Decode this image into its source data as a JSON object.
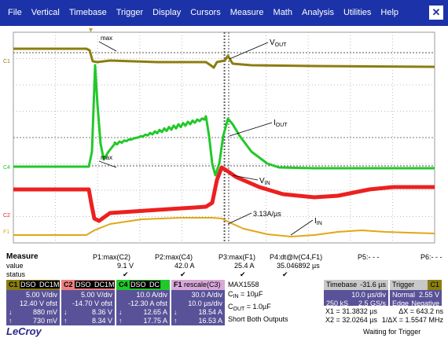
{
  "menu": [
    "File",
    "Vertical",
    "Timebase",
    "Trigger",
    "Display",
    "Cursors",
    "Measure",
    "Math",
    "Analysis",
    "Utilities",
    "Help"
  ],
  "close_glyph": "✕",
  "colors": {
    "c1": "#8b7d10",
    "c2": "#ec2020",
    "c4": "#22c82a",
    "f1": "#e0a818",
    "panel_bg": "#5a5298",
    "menu_bg": "#1c32a8"
  },
  "annotations": {
    "vout": {
      "main": "V",
      "sub": "OUT"
    },
    "iout": {
      "main": "I",
      "sub": "OUT"
    },
    "vin": {
      "main": "V",
      "sub": "IN"
    },
    "iin": {
      "main": "I",
      "sub": "IN"
    },
    "max1": "max",
    "max2": "max",
    "slope": "3.13A/µs"
  },
  "markers": {
    "c1": "C1",
    "c4": "C4",
    "c2": "C2",
    "f1": "F1"
  },
  "measure": {
    "title": "Measure",
    "row_value": "value",
    "row_status": "status",
    "params": [
      {
        "name": "P1:max(C2)",
        "value": "9.1 V",
        "status": "✔"
      },
      {
        "name": "P2:max(C4)",
        "value": "42.0 A",
        "status": "✔"
      },
      {
        "name": "P3:max(F1)",
        "value": "25.4 A",
        "status": "✔"
      },
      {
        "name": "P4:dt@lv(C4,F1)",
        "value": "35.046892 µs",
        "status": "✔"
      },
      {
        "name": "P5:- - -",
        "value": "",
        "status": ""
      },
      {
        "name": "P6:- - -",
        "value": "",
        "status": ""
      }
    ]
  },
  "channels": [
    {
      "tag": "C1",
      "dso": "DSO",
      "dc": "DC1M",
      "vdiv": "5.00 V/div",
      "ofst": "12.40 V ofst",
      "r1l": "↓",
      "r1": "880 mV",
      "r2l": "↑",
      "r2": "730 mV"
    },
    {
      "tag": "C2",
      "dso": "DSO",
      "dc": "DC1M",
      "vdiv": "5.00 V/div",
      "ofst": "-14.70 V ofst",
      "r1l": "↓",
      "r1": "8.36 V",
      "r2l": "↑",
      "r2": "8.34 V"
    },
    {
      "tag": "C4",
      "dso": "DSO",
      "dc": "DC",
      "vdiv": "10.0 A/div",
      "ofst": "-12.30 A ofst",
      "r1l": "↓",
      "r1": "12.65 A",
      "r2l": "↑",
      "r2": "17.75 A"
    },
    {
      "tag": "F1",
      "dso": "",
      "dc": "rescale(C3)",
      "vdiv": "30.0 A/div",
      "ofst": "10.0 µs/div",
      "r1l": "↓",
      "r1": "18.54 A",
      "r2l": "↑",
      "r2": "16.53 A"
    }
  ],
  "notes": {
    "part": "MAX1558",
    "cin": {
      "main": "C",
      "sub": "IN",
      "rest": " = 10µF"
    },
    "cout": {
      "main": "C",
      "sub": "OUT",
      "rest": " = 1.0µF"
    },
    "short": "Short Both Outputs"
  },
  "timebase": {
    "label": "Timebase",
    "offset": "-31.6 µs",
    "div": "10.0 µs/div",
    "samples": "250 kS",
    "rate": "2.5 GS/s"
  },
  "trigger": {
    "label": "Trigger",
    "ch": "C1",
    "mode": "Normal",
    "level": "2.55 V",
    "edge": "Edge",
    "slope": "Negative"
  },
  "cursors": {
    "x1": "X1 = 31.3832 µs",
    "dx": "ΔX = 643.2 ns",
    "x2": "X2 = 32.0264 µs",
    "inv": "1/ΔX = 1.5547 MHz"
  },
  "footer": {
    "brand": "LeCroy",
    "status": "Waiting for Trigger"
  }
}
